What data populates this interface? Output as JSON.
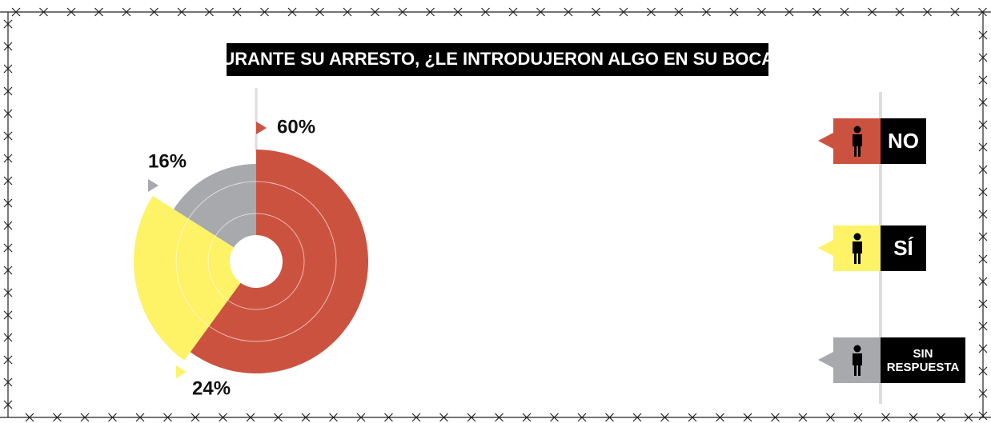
{
  "chart_data": {
    "type": "pie",
    "title": "DURANTE SU ARRESTO, ¿LE INTRODUJERON ALGO EN SU BOCA?",
    "categories": [
      "NO",
      "SÍ",
      "SIN RESPUESTA"
    ],
    "values": [
      60,
      24,
      16
    ],
    "value_labels": [
      "60%",
      "24%",
      "16%"
    ],
    "colors": [
      "#cc5240",
      "#fef266",
      "#a7a9ac"
    ],
    "legend": "right"
  }
}
